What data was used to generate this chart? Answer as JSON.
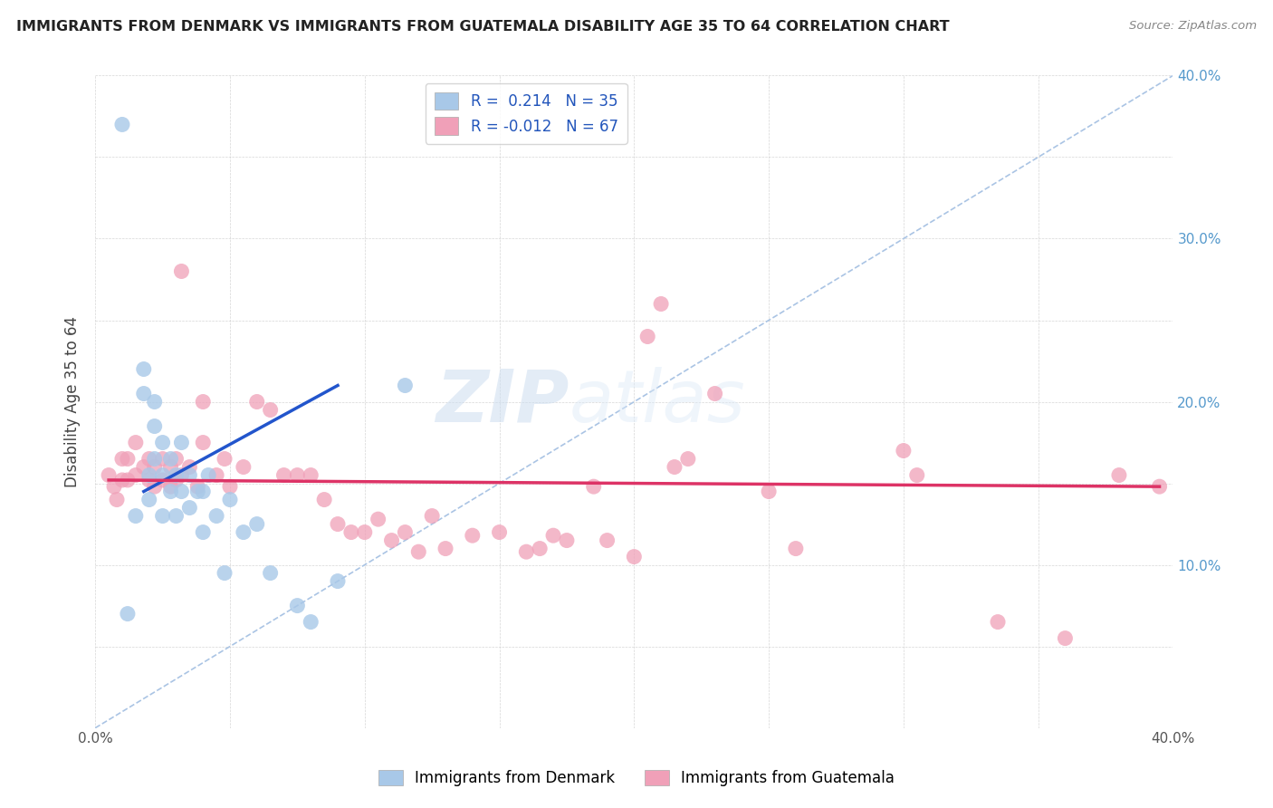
{
  "title": "IMMIGRANTS FROM DENMARK VS IMMIGRANTS FROM GUATEMALA DISABILITY AGE 35 TO 64 CORRELATION CHART",
  "source": "Source: ZipAtlas.com",
  "ylabel": "Disability Age 35 to 64",
  "xlim": [
    0.0,
    0.4
  ],
  "ylim": [
    0.0,
    0.4
  ],
  "xticks": [
    0.0,
    0.05,
    0.1,
    0.15,
    0.2,
    0.25,
    0.3,
    0.35,
    0.4
  ],
  "yticks": [
    0.0,
    0.05,
    0.1,
    0.15,
    0.2,
    0.25,
    0.3,
    0.35,
    0.4
  ],
  "color_denmark": "#a8c8e8",
  "color_guatemala": "#f0a0b8",
  "color_denmark_line": "#2255cc",
  "color_guatemala_line": "#dd3366",
  "color_diag_line": "#aac4e4",
  "watermark_zip": "ZIP",
  "watermark_atlas": "atlas",
  "denmark_x": [
    0.01,
    0.012,
    0.015,
    0.018,
    0.018,
    0.02,
    0.02,
    0.022,
    0.022,
    0.022,
    0.025,
    0.025,
    0.025,
    0.028,
    0.028,
    0.03,
    0.03,
    0.032,
    0.032,
    0.035,
    0.035,
    0.038,
    0.04,
    0.04,
    0.042,
    0.045,
    0.048,
    0.05,
    0.055,
    0.06,
    0.065,
    0.075,
    0.08,
    0.09,
    0.115
  ],
  "denmark_y": [
    0.37,
    0.07,
    0.13,
    0.22,
    0.205,
    0.155,
    0.14,
    0.2,
    0.185,
    0.165,
    0.175,
    0.155,
    0.13,
    0.165,
    0.145,
    0.155,
    0.13,
    0.175,
    0.145,
    0.155,
    0.135,
    0.145,
    0.145,
    0.12,
    0.155,
    0.13,
    0.095,
    0.14,
    0.12,
    0.125,
    0.095,
    0.075,
    0.065,
    0.09,
    0.21
  ],
  "guatemala_x": [
    0.005,
    0.007,
    0.008,
    0.01,
    0.01,
    0.012,
    0.012,
    0.015,
    0.015,
    0.018,
    0.02,
    0.02,
    0.022,
    0.022,
    0.025,
    0.025,
    0.028,
    0.028,
    0.03,
    0.03,
    0.032,
    0.032,
    0.035,
    0.038,
    0.04,
    0.04,
    0.045,
    0.048,
    0.05,
    0.055,
    0.06,
    0.065,
    0.07,
    0.075,
    0.08,
    0.085,
    0.09,
    0.095,
    0.1,
    0.105,
    0.11,
    0.115,
    0.12,
    0.125,
    0.13,
    0.14,
    0.15,
    0.16,
    0.165,
    0.17,
    0.175,
    0.185,
    0.19,
    0.2,
    0.205,
    0.21,
    0.215,
    0.22,
    0.23,
    0.25,
    0.26,
    0.3,
    0.305,
    0.335,
    0.36,
    0.38,
    0.395
  ],
  "guatemala_y": [
    0.155,
    0.148,
    0.14,
    0.165,
    0.152,
    0.165,
    0.152,
    0.175,
    0.155,
    0.16,
    0.165,
    0.152,
    0.16,
    0.148,
    0.165,
    0.152,
    0.16,
    0.148,
    0.165,
    0.152,
    0.28,
    0.155,
    0.16,
    0.148,
    0.2,
    0.175,
    0.155,
    0.165,
    0.148,
    0.16,
    0.2,
    0.195,
    0.155,
    0.155,
    0.155,
    0.14,
    0.125,
    0.12,
    0.12,
    0.128,
    0.115,
    0.12,
    0.108,
    0.13,
    0.11,
    0.118,
    0.12,
    0.108,
    0.11,
    0.118,
    0.115,
    0.148,
    0.115,
    0.105,
    0.24,
    0.26,
    0.16,
    0.165,
    0.205,
    0.145,
    0.11,
    0.17,
    0.155,
    0.065,
    0.055,
    0.155,
    0.148
  ],
  "dk_line_x": [
    0.018,
    0.09
  ],
  "dk_line_y": [
    0.145,
    0.21
  ],
  "gt_line_x": [
    0.005,
    0.395
  ],
  "gt_line_y": [
    0.152,
    0.148
  ]
}
